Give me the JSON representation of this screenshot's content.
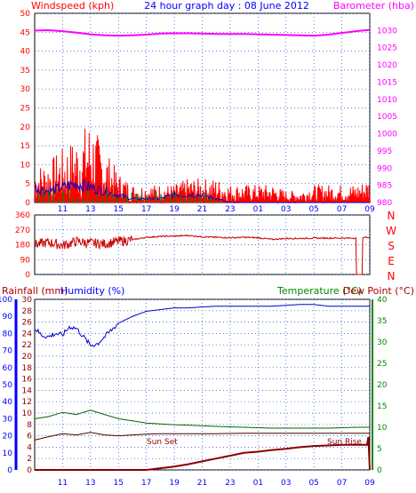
{
  "colors": {
    "wind": "#ff0000",
    "gust": "#0000cc",
    "windspeed_green": "#008800",
    "barometer": "#ff00ff",
    "direction": "#cc0000",
    "rain": "#8b0000",
    "humidity": "#0000cc",
    "temperature": "#006600",
    "dewpoint": "#4a0000",
    "title": "#0000ff",
    "axis_blue": "#0000ff",
    "axis_red": "#ff0000",
    "axis_magenta": "#ff00ff",
    "axis_green": "#008800",
    "label_maroon": "#aa0000"
  },
  "chart_data": [
    {
      "type": "line",
      "title": "24 hour graph day : 08 June 2012",
      "ylabel_left": "Windspeed (kph)",
      "ylabel_right": "Barometer (hba)",
      "x_ticks": [
        "11",
        "13",
        "15",
        "17",
        "19",
        "21",
        "23",
        "01",
        "03",
        "05",
        "07",
        "09"
      ],
      "ylim_left": [
        0,
        50
      ],
      "yticks_left": [
        0,
        5,
        10,
        15,
        20,
        25,
        30,
        35,
        40,
        45,
        50
      ],
      "ylim_right": [
        980,
        1035
      ],
      "yticks_right": [
        980,
        985,
        990,
        995,
        1000,
        1005,
        1010,
        1015,
        1020,
        1025,
        1030
      ],
      "grid": true,
      "series": [
        {
          "name": "Barometer",
          "axis": "right",
          "x": [
            9,
            10,
            11,
            12,
            13,
            14,
            15,
            16,
            17,
            18,
            19,
            20,
            21,
            22,
            23,
            24,
            25,
            26,
            27,
            28,
            29,
            30,
            31,
            32,
            33
          ],
          "values": [
            1030.0,
            1030.1,
            1029.8,
            1029.4,
            1028.9,
            1028.6,
            1028.5,
            1028.6,
            1028.8,
            1029.1,
            1029.2,
            1029.2,
            1029.1,
            1029.0,
            1029.0,
            1029.0,
            1028.9,
            1028.8,
            1028.7,
            1028.6,
            1028.5,
            1028.8,
            1029.3,
            1029.8,
            1030.2
          ]
        },
        {
          "name": "Windspeed",
          "axis": "left",
          "x": [
            9,
            10,
            11,
            12,
            13,
            14,
            15,
            16,
            17,
            18,
            19,
            20,
            21,
            22,
            23,
            24,
            25,
            26,
            27,
            28,
            29,
            30,
            31,
            32,
            33
          ],
          "values": [
            6,
            7,
            9,
            11,
            14,
            9,
            5,
            3,
            3,
            3,
            3,
            4,
            4,
            4,
            3,
            3,
            3,
            3,
            2,
            2,
            3,
            3,
            3,
            3,
            4
          ]
        },
        {
          "name": "Wind Gust",
          "axis": "left",
          "x": [
            9,
            10,
            11,
            12,
            13,
            14,
            15,
            16,
            17,
            18,
            19,
            20,
            21,
            22,
            23,
            24,
            25,
            26,
            27,
            28,
            29,
            30,
            31,
            32,
            33
          ],
          "values": [
            4,
            3,
            4,
            5,
            4,
            3,
            2,
            1,
            1,
            1,
            2,
            2,
            2,
            1,
            0,
            0,
            0,
            0,
            0,
            0,
            0,
            0,
            0,
            0,
            0
          ]
        }
      ]
    },
    {
      "type": "line",
      "xlim": [
        9,
        33
      ],
      "ylim": [
        0,
        360
      ],
      "yticks": [
        0,
        90,
        180,
        270,
        360
      ],
      "compass_labels": [
        "N",
        "W",
        "S",
        "E",
        "N"
      ],
      "series": [
        {
          "name": "Wind Direction",
          "x": [
            9,
            10,
            11,
            12,
            13,
            14,
            15,
            16,
            17,
            18,
            19,
            20,
            21,
            22,
            23,
            24,
            25,
            26,
            27,
            28,
            29,
            30,
            31,
            32,
            32.1,
            32.4,
            32.6,
            33
          ],
          "values": [
            180,
            195,
            175,
            200,
            190,
            185,
            200,
            210,
            225,
            230,
            232,
            236,
            228,
            225,
            222,
            225,
            222,
            212,
            218,
            218,
            220,
            220,
            220,
            220,
            0,
            225,
            225,
            225
          ]
        }
      ]
    },
    {
      "type": "line",
      "xlim": [
        9,
        33
      ],
      "ylabel_rain": "Rainfall (mm)",
      "ylabel_humidity": "Humidity (%)",
      "ylabel_temperature": "Temperature (°C)",
      "ylabel_dewpoint": "Dew Point (°C)",
      "ylim_humidity": [
        0,
        100
      ],
      "yticks_humidity": [
        0,
        10,
        20,
        30,
        40,
        50,
        60,
        70,
        80,
        90,
        100
      ],
      "ylim_rain": [
        0,
        30
      ],
      "yticks_rain": [
        0,
        2,
        4,
        6,
        8,
        10,
        12,
        14,
        16,
        18,
        20,
        22,
        24,
        26,
        28,
        30
      ],
      "ylim_temp": [
        0,
        40
      ],
      "yticks_temp": [
        0,
        5,
        10,
        15,
        20,
        25,
        30,
        35,
        40
      ],
      "annotations": [
        "Sun Set",
        "Sun Rise"
      ],
      "series": [
        {
          "name": "Humidity",
          "axis": "humidity",
          "x": [
            9,
            9.5,
            10,
            10.5,
            11,
            11.5,
            12,
            12.5,
            13,
            13.5,
            14,
            14.5,
            15,
            16,
            17,
            18,
            19,
            20,
            22,
            24,
            26,
            28,
            29,
            30,
            31,
            32,
            33
          ],
          "values": [
            83,
            79,
            78,
            80,
            79,
            84,
            83,
            78,
            73,
            74,
            78,
            82,
            86,
            90,
            93,
            94,
            95,
            95,
            96,
            96,
            96,
            97,
            97,
            96,
            96,
            96,
            96
          ]
        },
        {
          "name": "Temperature",
          "axis": "temp",
          "x": [
            9,
            10,
            11,
            12,
            13,
            14,
            15,
            16,
            17,
            18,
            19,
            20,
            22,
            24,
            26,
            28,
            30,
            32,
            33
          ],
          "values": [
            12.0,
            12.5,
            13.5,
            13.0,
            14.0,
            13.0,
            12.0,
            11.5,
            11.0,
            10.8,
            10.6,
            10.5,
            10.2,
            10.0,
            9.8,
            9.8,
            9.8,
            10.0,
            10.0
          ]
        },
        {
          "name": "Dew Point",
          "axis": "temp",
          "x": [
            9,
            10,
            11,
            12,
            13,
            14,
            15,
            16,
            17,
            18,
            19,
            20,
            22,
            24,
            26,
            28,
            30,
            32,
            33
          ],
          "values": [
            7.0,
            7.8,
            8.5,
            8.2,
            8.8,
            8.2,
            8.0,
            8.2,
            8.4,
            8.5,
            8.5,
            8.5,
            8.5,
            8.6,
            8.6,
            8.6,
            8.6,
            8.6,
            8.6
          ]
        },
        {
          "name": "Rainfall",
          "axis": "rain",
          "x": [
            9,
            11,
            13,
            15,
            17,
            18,
            19,
            20,
            21,
            22,
            23,
            24,
            25,
            26,
            27,
            28,
            29,
            30,
            31,
            32,
            32.8,
            32.9,
            33
          ],
          "values": [
            0,
            0,
            0,
            0,
            0,
            0.3,
            0.6,
            1.0,
            1.5,
            2.0,
            2.5,
            3.0,
            3.2,
            3.5,
            3.7,
            4.0,
            4.2,
            4.3,
            4.4,
            4.4,
            4.4,
            5.8,
            0
          ]
        }
      ]
    }
  ]
}
